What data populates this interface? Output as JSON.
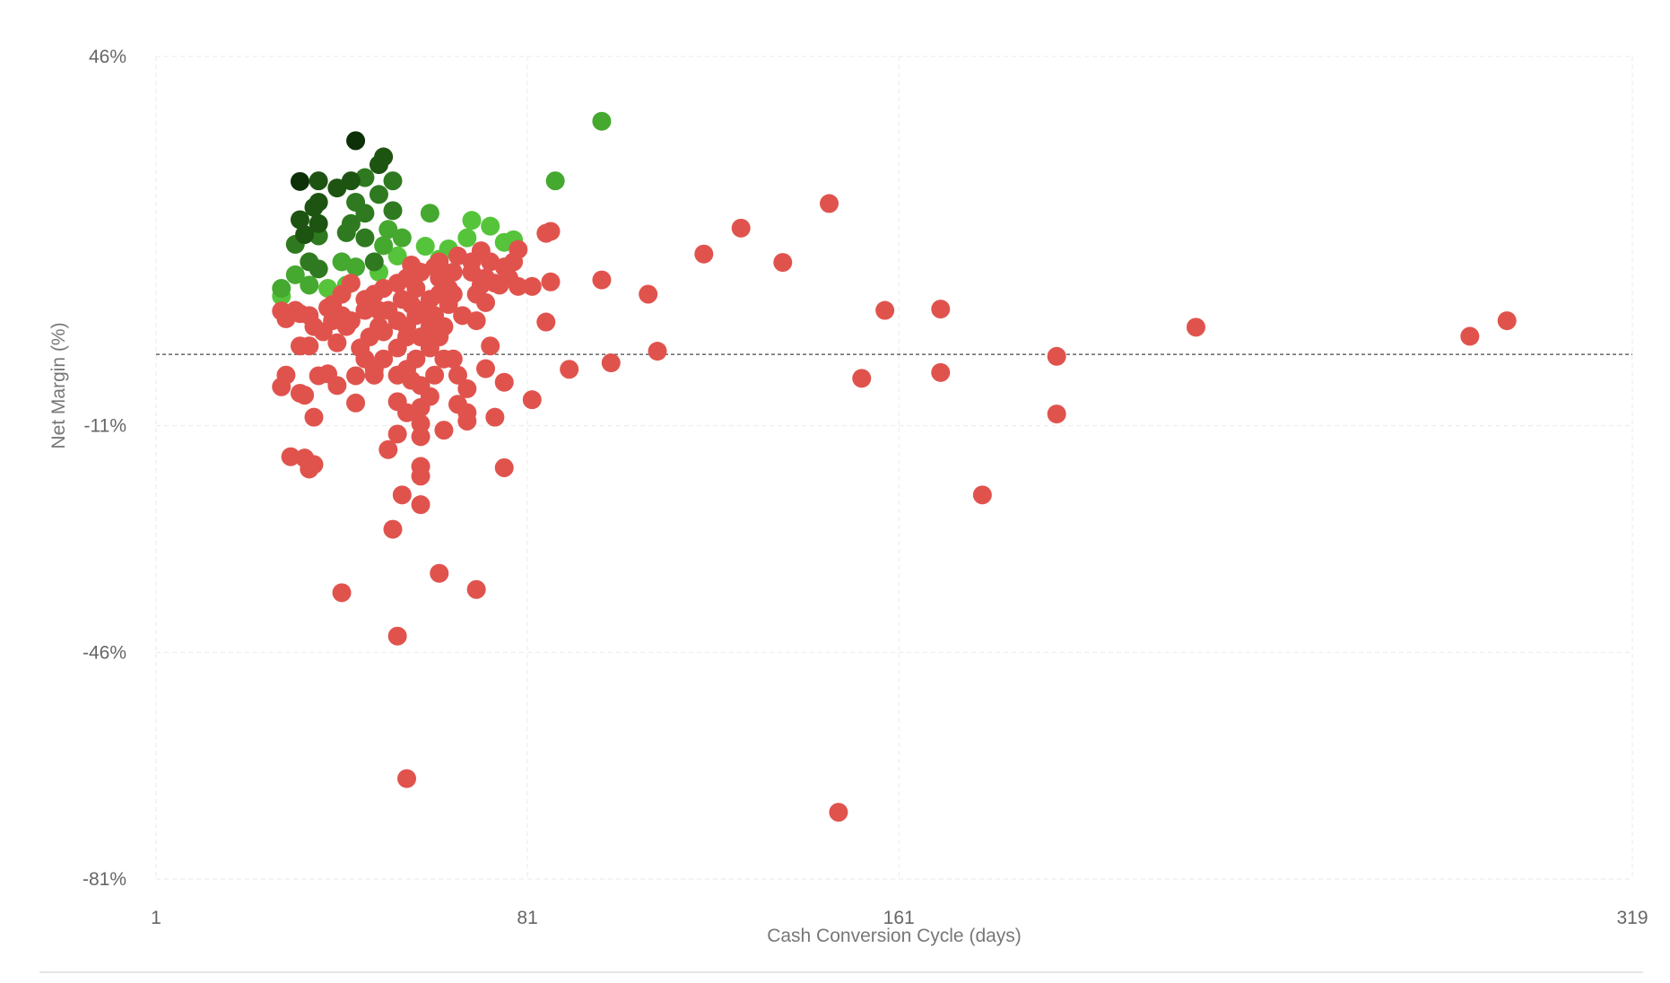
{
  "chart_data": {
    "type": "scatter",
    "title": "",
    "xlabel": "Cash Conversion Cycle (days)",
    "ylabel": "Net Margin (%)",
    "xlim": [
      1,
      319
    ],
    "ylim": [
      -81,
      46
    ],
    "x_ticks": [
      "1",
      "81",
      "161",
      "319"
    ],
    "x_tick_values": [
      1,
      81,
      161,
      319
    ],
    "y_ticks": [
      "46%",
      "-11%",
      "-46%",
      "-81%"
    ],
    "y_tick_values": [
      46,
      -11,
      -46,
      -81
    ],
    "reference_line": {
      "y": 0,
      "style": "dashed",
      "color": "#666666"
    },
    "grid": true,
    "legend": "none",
    "palette": {
      "g0": "#0d3008",
      "g1": "#1e5412",
      "g2": "#2f7a20",
      "g3": "#45a82f",
      "g4": "#55c43a",
      "r": "#e0534d"
    },
    "points": [
      [
        69,
        20.7,
        "g4"
      ],
      [
        73,
        19.8,
        "g4"
      ],
      [
        59,
        16.7,
        "g4"
      ],
      [
        64,
        16.3,
        "g4"
      ],
      [
        68,
        18,
        "g4"
      ],
      [
        76,
        17.3,
        "g4"
      ],
      [
        78,
        17.7,
        "g4"
      ],
      [
        28,
        9,
        "g4"
      ],
      [
        38,
        10.2,
        "g4"
      ],
      [
        42,
        10.7,
        "g4"
      ],
      [
        49,
        12.7,
        "g4"
      ],
      [
        53,
        15.2,
        "g4"
      ],
      [
        62,
        14.7,
        "g4"
      ],
      [
        97,
        36,
        "g3"
      ],
      [
        87,
        26.8,
        "g3"
      ],
      [
        51,
        19.3,
        "g3"
      ],
      [
        50,
        16.8,
        "g3"
      ],
      [
        31,
        12.3,
        "g3"
      ],
      [
        28,
        10.2,
        "g3"
      ],
      [
        34,
        10.7,
        "g3"
      ],
      [
        41,
        14.3,
        "g3"
      ],
      [
        44,
        13.5,
        "g3"
      ],
      [
        60,
        21.8,
        "g3"
      ],
      [
        54,
        18,
        "g3"
      ],
      [
        46,
        27.3,
        "g2"
      ],
      [
        52,
        26.8,
        "g2"
      ],
      [
        44,
        23.5,
        "g2"
      ],
      [
        49,
        24.7,
        "g2"
      ],
      [
        46,
        21.8,
        "g2"
      ],
      [
        52,
        22.2,
        "g2"
      ],
      [
        43,
        20.2,
        "g2"
      ],
      [
        42,
        18.8,
        "g2"
      ],
      [
        36,
        18.3,
        "g2"
      ],
      [
        31,
        17,
        "g2"
      ],
      [
        34,
        14.3,
        "g2"
      ],
      [
        36,
        13.2,
        "g2"
      ],
      [
        46,
        18,
        "g2"
      ],
      [
        48,
        14.3,
        "g2"
      ],
      [
        36,
        26.8,
        "g1"
      ],
      [
        50,
        30.5,
        "g1"
      ],
      [
        49,
        29.3,
        "g1"
      ],
      [
        43,
        26.8,
        "g1"
      ],
      [
        40,
        25.7,
        "g1"
      ],
      [
        36,
        23.5,
        "g1"
      ],
      [
        35,
        22.7,
        "g1"
      ],
      [
        32,
        20.8,
        "g1"
      ],
      [
        36,
        20.2,
        "g1"
      ],
      [
        33,
        18.5,
        "g1"
      ],
      [
        44,
        33,
        "g0"
      ],
      [
        32,
        26.7,
        "g0"
      ],
      [
        146,
        23.3,
        "r"
      ],
      [
        127,
        19.5,
        "r"
      ],
      [
        119,
        15.5,
        "r"
      ],
      [
        136,
        14.2,
        "r"
      ],
      [
        97,
        11.5,
        "r"
      ],
      [
        107,
        9.3,
        "r"
      ],
      [
        158,
        6.8,
        "r"
      ],
      [
        170,
        7,
        "r"
      ],
      [
        225,
        4.2,
        "r"
      ],
      [
        284,
        2.8,
        "r"
      ],
      [
        292,
        5.2,
        "r"
      ],
      [
        109,
        0.5,
        "r"
      ],
      [
        195,
        -0.3,
        "r"
      ],
      [
        99,
        -1.3,
        "r"
      ],
      [
        90,
        -2.3,
        "r"
      ],
      [
        153,
        -3.7,
        "r"
      ],
      [
        170,
        -2.8,
        "r"
      ],
      [
        195,
        -9.2,
        "r"
      ],
      [
        179,
        -21.7,
        "r"
      ],
      [
        148,
        -70.7,
        "r"
      ],
      [
        55,
        -65.5,
        "r"
      ],
      [
        53,
        -43.5,
        "r"
      ],
      [
        41,
        -36.8,
        "r"
      ],
      [
        70,
        -36.3,
        "r"
      ],
      [
        62,
        -33.8,
        "r"
      ],
      [
        52,
        -27,
        "r"
      ],
      [
        54,
        -21.7,
        "r"
      ],
      [
        58,
        -23.2,
        "r"
      ],
      [
        58,
        -18.8,
        "r"
      ],
      [
        58,
        -17.3,
        "r"
      ],
      [
        76,
        -17.5,
        "r"
      ],
      [
        51,
        -14.7,
        "r"
      ],
      [
        53,
        -12.3,
        "r"
      ],
      [
        58,
        -12.7,
        "r"
      ],
      [
        63,
        -11.7,
        "r"
      ],
      [
        68,
        -10.3,
        "r"
      ],
      [
        74,
        -9.7,
        "r"
      ],
      [
        82,
        -7,
        "r"
      ],
      [
        76,
        -4.3,
        "r"
      ],
      [
        72,
        -2.2,
        "r"
      ],
      [
        73,
        1.3,
        "r"
      ],
      [
        85,
        5,
        "r"
      ],
      [
        86,
        11.2,
        "r"
      ],
      [
        82,
        10.5,
        "r"
      ],
      [
        79,
        10.5,
        "r"
      ],
      [
        75,
        10.7,
        "r"
      ],
      [
        85,
        18.7,
        "r"
      ],
      [
        86,
        19,
        "r"
      ],
      [
        79,
        16.2,
        "r"
      ],
      [
        35,
        -9.7,
        "r"
      ],
      [
        30,
        -15.8,
        "r"
      ],
      [
        33,
        -16,
        "r"
      ],
      [
        34,
        -17.7,
        "r"
      ],
      [
        35,
        -17,
        "r"
      ],
      [
        28,
        -5,
        "r"
      ],
      [
        29,
        -3.2,
        "r"
      ],
      [
        32,
        -6,
        "r"
      ],
      [
        33,
        -6.3,
        "r"
      ],
      [
        36,
        -3.3,
        "r"
      ],
      [
        38,
        -3,
        "r"
      ],
      [
        40,
        -4.8,
        "r"
      ],
      [
        44,
        -7.5,
        "r"
      ],
      [
        44,
        -3.3,
        "r"
      ],
      [
        48,
        -3.2,
        "r"
      ],
      [
        28,
        6.7,
        "r"
      ],
      [
        29,
        5.5,
        "r"
      ],
      [
        32,
        1.3,
        "r"
      ],
      [
        32,
        6.3,
        "r"
      ],
      [
        34,
        1.3,
        "r"
      ],
      [
        31,
        6.8,
        "r"
      ],
      [
        34,
        6,
        "r"
      ],
      [
        38,
        7.2,
        "r"
      ],
      [
        39,
        7.7,
        "r"
      ],
      [
        41,
        6,
        "r"
      ],
      [
        43,
        5.2,
        "r"
      ],
      [
        46,
        6.8,
        "r"
      ],
      [
        48,
        9.3,
        "r"
      ],
      [
        50,
        10.2,
        "r"
      ],
      [
        53,
        11,
        "r"
      ],
      [
        55,
        11.8,
        "r"
      ],
      [
        56,
        13.8,
        "r"
      ],
      [
        58,
        12.7,
        "r"
      ],
      [
        61,
        13.5,
        "r"
      ],
      [
        62,
        14.3,
        "r"
      ],
      [
        65,
        9.3,
        "r"
      ],
      [
        66,
        15.2,
        "r"
      ],
      [
        69,
        14.3,
        "r"
      ],
      [
        71,
        16,
        "r"
      ],
      [
        73,
        14.3,
        "r"
      ],
      [
        76,
        13.5,
        "r"
      ],
      [
        78,
        14.3,
        "r"
      ],
      [
        67,
        6,
        "r"
      ],
      [
        70,
        5.2,
        "r"
      ],
      [
        72,
        8,
        "r"
      ],
      [
        71,
        10.7,
        "r"
      ],
      [
        70,
        9.3,
        "r"
      ],
      [
        64,
        10.2,
        "r"
      ],
      [
        62,
        9.3,
        "r"
      ],
      [
        60,
        8.5,
        "r"
      ],
      [
        57,
        10.2,
        "r"
      ],
      [
        54,
        8.5,
        "r"
      ],
      [
        51,
        6.8,
        "r"
      ],
      [
        49,
        4.3,
        "r"
      ],
      [
        47,
        2.7,
        "r"
      ],
      [
        45,
        1,
        "r"
      ],
      [
        42,
        4.3,
        "r"
      ],
      [
        40,
        1.8,
        "r"
      ],
      [
        37,
        3.5,
        "r"
      ],
      [
        35,
        4.3,
        "r"
      ],
      [
        55,
        4.3,
        "r"
      ],
      [
        57,
        6,
        "r"
      ],
      [
        60,
        4.3,
        "r"
      ],
      [
        62,
        2.7,
        "r"
      ],
      [
        60,
        1,
        "r"
      ],
      [
        57,
        -0.7,
        "r"
      ],
      [
        55,
        -2.3,
        "r"
      ],
      [
        53,
        -3.2,
        "r"
      ],
      [
        56,
        -4,
        "r"
      ],
      [
        58,
        -4.8,
        "r"
      ],
      [
        61,
        -3.2,
        "r"
      ],
      [
        63,
        -0.7,
        "r"
      ],
      [
        65,
        -0.7,
        "r"
      ],
      [
        53,
        1,
        "r"
      ],
      [
        50,
        -0.7,
        "r"
      ],
      [
        48,
        -2.3,
        "r"
      ],
      [
        46,
        -0.7,
        "r"
      ],
      [
        43,
        11,
        "r"
      ],
      [
        46,
        8.5,
        "r"
      ],
      [
        39,
        5.2,
        "r"
      ],
      [
        41,
        9.3,
        "r"
      ],
      [
        55,
        2.7,
        "r"
      ],
      [
        58,
        2.7,
        "r"
      ],
      [
        61,
        6,
        "r"
      ],
      [
        63,
        4.3,
        "r"
      ],
      [
        64,
        7.7,
        "r"
      ],
      [
        53,
        -7.3,
        "r"
      ],
      [
        55,
        -9,
        "r"
      ],
      [
        58,
        -8.2,
        "r"
      ],
      [
        60,
        -6.5,
        "r"
      ],
      [
        66,
        -3.2,
        "r"
      ],
      [
        68,
        -5.3,
        "r"
      ],
      [
        66,
        -7.7,
        "r"
      ],
      [
        68,
        -9,
        "r"
      ],
      [
        58,
        -10.7,
        "r"
      ],
      [
        49,
        6.8,
        "r"
      ],
      [
        50,
        3.5,
        "r"
      ],
      [
        53,
        5.2,
        "r"
      ],
      [
        56,
        7.7,
        "r"
      ],
      [
        58,
        6.8,
        "r"
      ],
      [
        62,
        11.8,
        "r"
      ],
      [
        65,
        12.7,
        "r"
      ],
      [
        69,
        12.7,
        "r"
      ],
      [
        72,
        11.8,
        "r"
      ],
      [
        74,
        11,
        "r"
      ],
      [
        77,
        11.8,
        "r"
      ]
    ]
  }
}
